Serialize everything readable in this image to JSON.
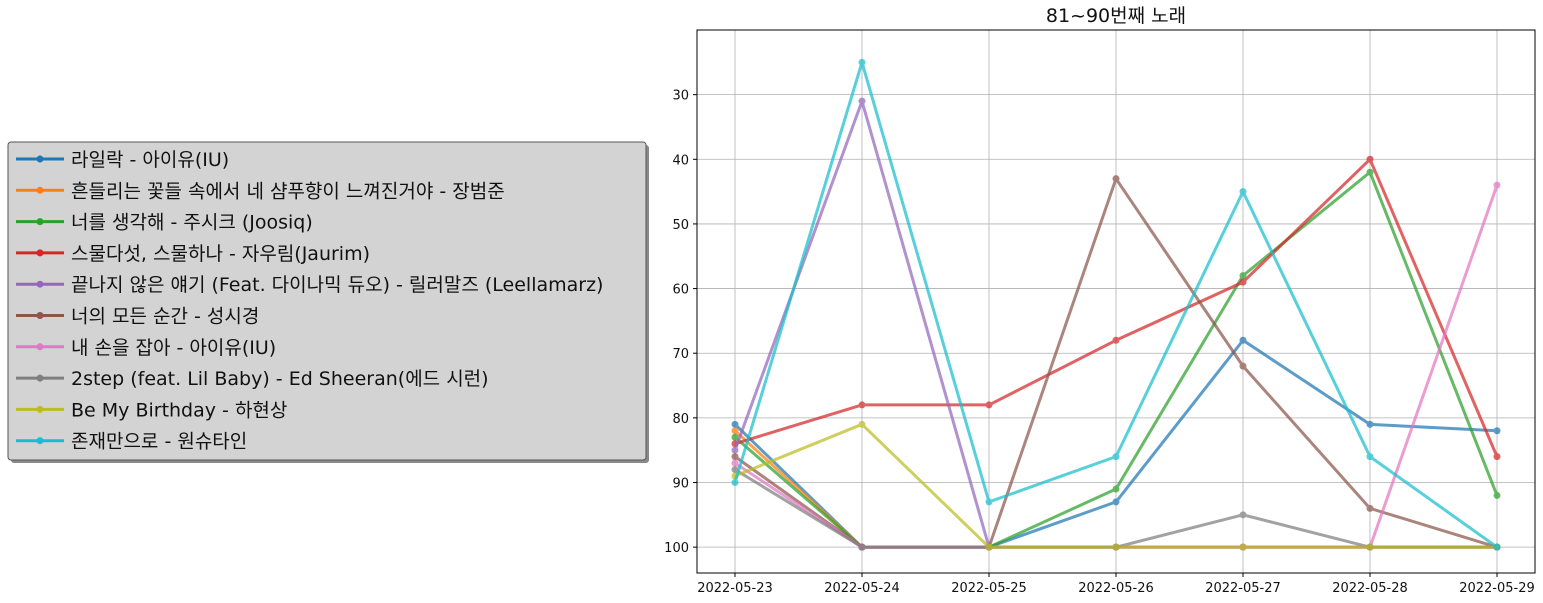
{
  "chart_data": {
    "type": "line",
    "title": "81~90번째 노래",
    "xlabel": "",
    "ylabel": "",
    "x": [
      "2022-05-23",
      "2022-05-24",
      "2022-05-25",
      "2022-05-26",
      "2022-05-27",
      "2022-05-28",
      "2022-05-29"
    ],
    "yticks": [
      30,
      40,
      50,
      60,
      70,
      80,
      90,
      100
    ],
    "ylim": [
      104,
      20
    ],
    "y_inverted": true,
    "grid": true,
    "legend_position": "left, outside plot",
    "series": [
      {
        "name": "라일락 - 아이유(IU)",
        "color": "#1f77b4",
        "values": [
          81,
          100,
          100,
          93,
          68,
          81,
          82
        ]
      },
      {
        "name": "흔들리는 꽃들 속에서 네 샴푸향이 느껴진거야 - 장범준",
        "color": "#ff7f0e",
        "values": [
          82,
          100,
          100,
          100,
          100,
          100,
          100
        ]
      },
      {
        "name": "너를 생각해 - 주시크 (Joosiq)",
        "color": "#2ca02c",
        "values": [
          83,
          100,
          100,
          91,
          58,
          42,
          92
        ]
      },
      {
        "name": "스물다섯, 스물하나 - 자우림(Jaurim)",
        "color": "#d62728",
        "values": [
          84,
          78,
          78,
          68,
          59,
          40,
          86
        ]
      },
      {
        "name": "끝나지 않은 얘기 (Feat. 다이나믹 듀오) - 릴러말즈 (Leellamarz)",
        "color": "#9467bd",
        "values": [
          85,
          31,
          100,
          100,
          100,
          100,
          100
        ]
      },
      {
        "name": "너의 모든 순간 - 성시경",
        "color": "#8c564b",
        "values": [
          86,
          100,
          100,
          43,
          72,
          94,
          100
        ]
      },
      {
        "name": "내 손을 잡아 - 아이유(IU)",
        "color": "#e377c2",
        "values": [
          87,
          100,
          100,
          100,
          100,
          100,
          44
        ]
      },
      {
        "name": "2step (feat. Lil Baby) - Ed Sheeran(에드 시런)",
        "color": "#7f7f7f",
        "values": [
          88,
          100,
          100,
          100,
          95,
          100,
          100
        ]
      },
      {
        "name": "Be My Birthday - 하현상",
        "color": "#bcbd22",
        "values": [
          89,
          81,
          100,
          100,
          100,
          100,
          100
        ]
      },
      {
        "name": "존재만으로 - 원슈타인",
        "color": "#17becf",
        "values": [
          90,
          25,
          93,
          86,
          45,
          86,
          100
        ]
      }
    ]
  }
}
